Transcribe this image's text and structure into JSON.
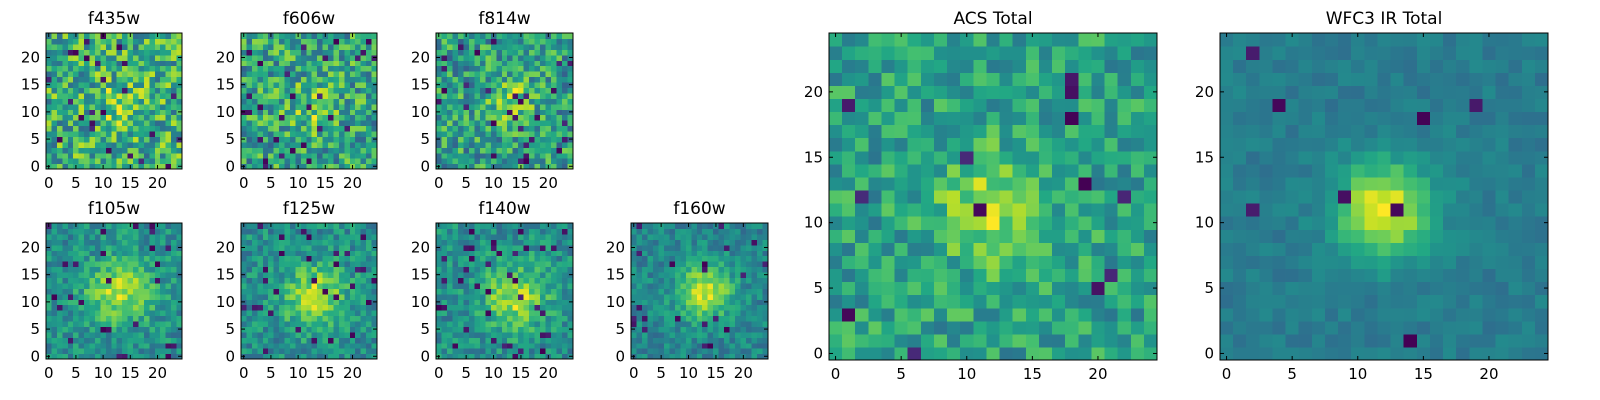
{
  "figure_title": "",
  "chart_data": [
    {
      "type": "heatmap",
      "title": "f435w",
      "grid": [
        25,
        25
      ],
      "xlim": [
        -0.5,
        24.5
      ],
      "ylim": [
        -0.5,
        24.5
      ],
      "xticks": [
        0,
        5,
        10,
        15,
        20
      ],
      "yticks": [
        0,
        5,
        10,
        15,
        20
      ],
      "colormap": "viridis",
      "seed": 11,
      "bright_center": [
        13,
        11
      ],
      "bright_sigma": 3,
      "bright_amp": 0.15,
      "noise": 0.5,
      "dark_pixel_rate": 0.03,
      "xlabel": "",
      "ylabel": ""
    },
    {
      "type": "heatmap",
      "title": "f606w",
      "grid": [
        25,
        25
      ],
      "xlim": [
        -0.5,
        24.5
      ],
      "ylim": [
        -0.5,
        24.5
      ],
      "xticks": [
        0,
        5,
        10,
        15,
        20
      ],
      "yticks": [
        0,
        5,
        10,
        15,
        20
      ],
      "colormap": "viridis",
      "seed": 23,
      "bright_center": [
        13,
        11
      ],
      "bright_sigma": 3,
      "bright_amp": 0.2,
      "noise": 0.5,
      "dark_pixel_rate": 0.04,
      "xlabel": "",
      "ylabel": ""
    },
    {
      "type": "heatmap",
      "title": "f814w",
      "grid": [
        25,
        25
      ],
      "xlim": [
        -0.5,
        24.5
      ],
      "ylim": [
        -0.5,
        24.5
      ],
      "xticks": [
        0,
        5,
        10,
        15,
        20
      ],
      "yticks": [
        0,
        5,
        10,
        15,
        20
      ],
      "colormap": "viridis",
      "seed": 37,
      "bright_center": [
        13,
        12
      ],
      "bright_sigma": 3,
      "bright_amp": 0.25,
      "noise": 0.5,
      "dark_pixel_rate": 0.04,
      "xlabel": "",
      "ylabel": ""
    },
    {
      "type": "heatmap",
      "title": "f105w",
      "grid": [
        25,
        25
      ],
      "xlim": [
        -0.5,
        24.5
      ],
      "ylim": [
        -0.5,
        24.5
      ],
      "xticks": [
        0,
        5,
        10,
        15,
        20
      ],
      "yticks": [
        0,
        5,
        10,
        15,
        20
      ],
      "colormap": "viridis",
      "seed": 41,
      "bright_center": [
        13,
        12
      ],
      "bright_sigma": 4,
      "bright_amp": 0.45,
      "noise": 0.35,
      "dark_pixel_rate": 0.04,
      "xlabel": "",
      "ylabel": ""
    },
    {
      "type": "heatmap",
      "title": "f125w",
      "grid": [
        25,
        25
      ],
      "xlim": [
        -0.5,
        24.5
      ],
      "ylim": [
        -0.5,
        24.5
      ],
      "xticks": [
        0,
        5,
        10,
        15,
        20
      ],
      "yticks": [
        0,
        5,
        10,
        15,
        20
      ],
      "colormap": "viridis",
      "seed": 53,
      "bright_center": [
        13,
        11
      ],
      "bright_sigma": 4,
      "bright_amp": 0.45,
      "noise": 0.35,
      "dark_pixel_rate": 0.04,
      "xlabel": "",
      "ylabel": ""
    },
    {
      "type": "heatmap",
      "title": "f140w",
      "grid": [
        25,
        25
      ],
      "xlim": [
        -0.5,
        24.5
      ],
      "ylim": [
        -0.5,
        24.5
      ],
      "xticks": [
        0,
        5,
        10,
        15,
        20
      ],
      "yticks": [
        0,
        5,
        10,
        15,
        20
      ],
      "colormap": "viridis",
      "seed": 67,
      "bright_center": [
        14,
        11
      ],
      "bright_sigma": 4,
      "bright_amp": 0.45,
      "noise": 0.35,
      "dark_pixel_rate": 0.05,
      "xlabel": "",
      "ylabel": ""
    },
    {
      "type": "heatmap",
      "title": "f160w",
      "grid": [
        25,
        25
      ],
      "xlim": [
        -0.5,
        24.5
      ],
      "ylim": [
        -0.5,
        24.5
      ],
      "xticks": [
        0,
        5,
        10,
        15,
        20
      ],
      "yticks": [
        0,
        5,
        10,
        15,
        20
      ],
      "colormap": "viridis",
      "seed": 79,
      "bright_center": [
        13,
        12
      ],
      "bright_sigma": 3.5,
      "bright_amp": 0.55,
      "noise": 0.3,
      "dark_pixel_rate": 0.05,
      "xlabel": "",
      "ylabel": ""
    },
    {
      "type": "heatmap",
      "title": "ACS Total",
      "grid": [
        25,
        25
      ],
      "xlim": [
        -0.5,
        24.5
      ],
      "ylim": [
        -0.5,
        24.5
      ],
      "xticks": [
        0,
        5,
        10,
        15,
        20
      ],
      "yticks": [
        0,
        5,
        10,
        15,
        20
      ],
      "colormap": "viridis",
      "seed": 97,
      "bright_center": [
        12,
        11
      ],
      "bright_sigma": 3,
      "bright_amp": 0.3,
      "noise": 0.35,
      "dark_pixel_rate": 0.025,
      "xlabel": "",
      "ylabel": ""
    },
    {
      "type": "heatmap",
      "title": "WFC3 IR Total",
      "grid": [
        25,
        25
      ],
      "xlim": [
        -0.5,
        24.5
      ],
      "ylim": [
        -0.5,
        24.5
      ],
      "xticks": [
        0,
        5,
        10,
        15,
        20
      ],
      "yticks": [
        0,
        5,
        10,
        15,
        20
      ],
      "colormap": "viridis",
      "seed": 113,
      "bright_center": [
        12,
        11
      ],
      "bright_sigma": 2.5,
      "bright_amp": 0.75,
      "noise": 0.15,
      "dark_pixel_rate": 0.015,
      "xlabel": "",
      "ylabel": ""
    }
  ]
}
